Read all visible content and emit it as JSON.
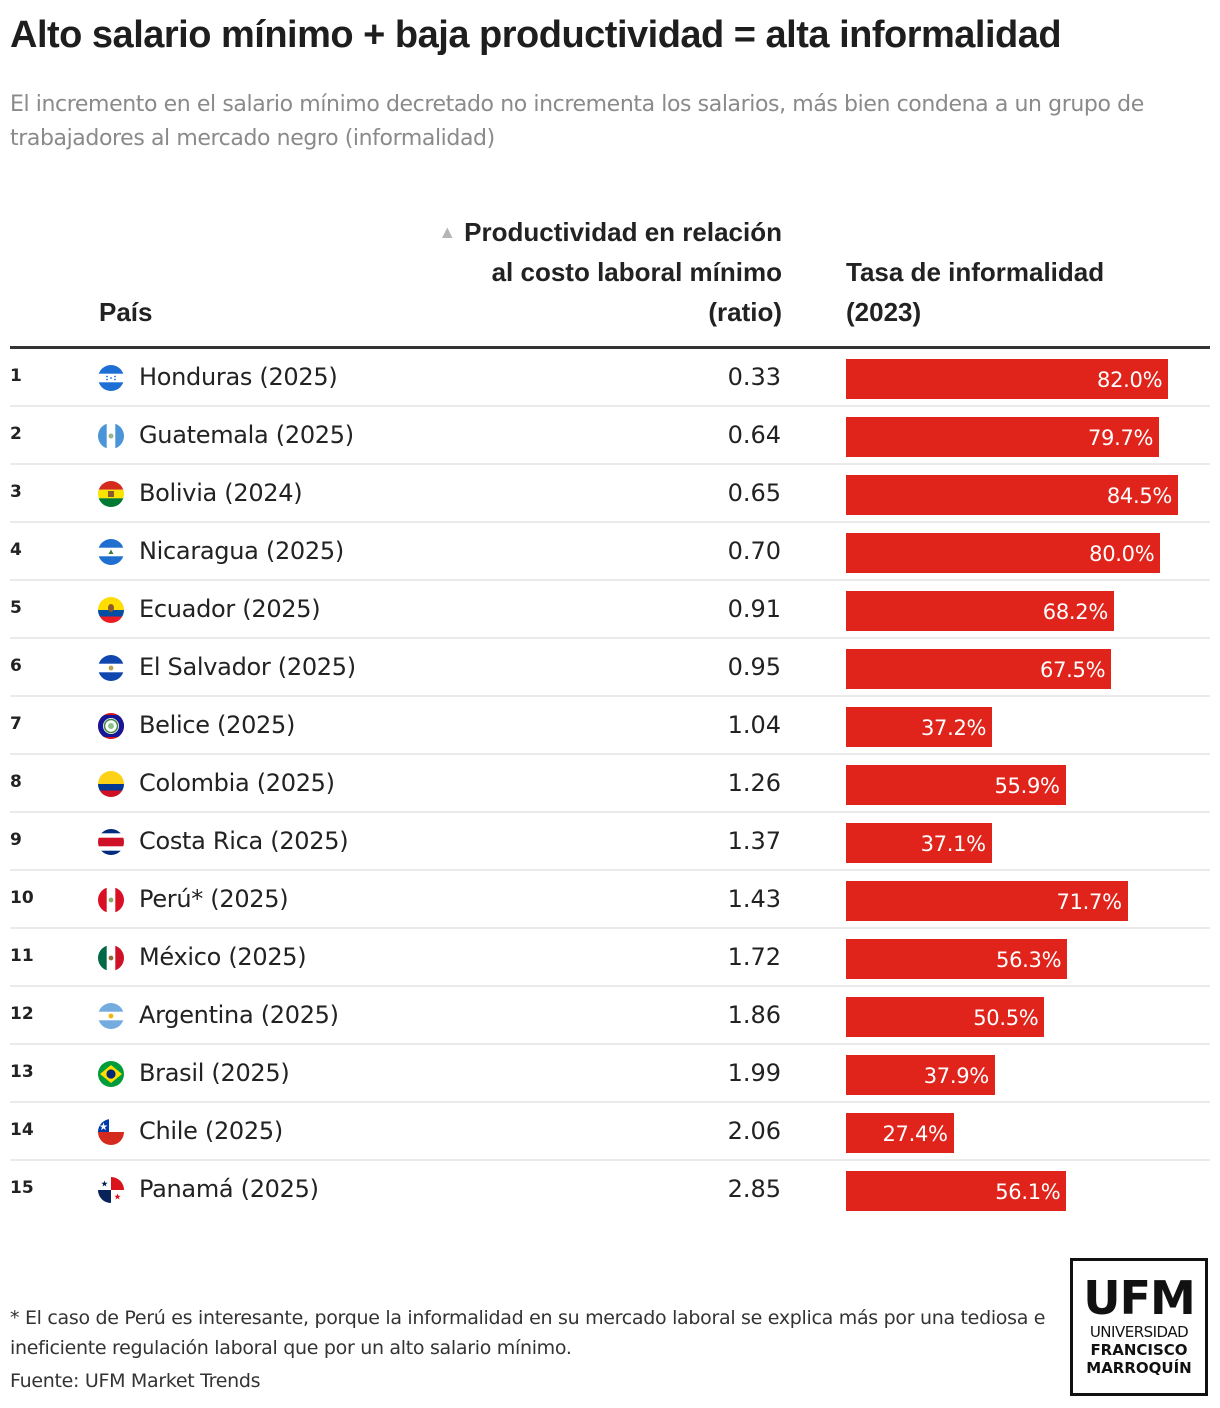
{
  "title": "Alto salario mínimo + baja productividad = alta informalidad",
  "subtitle": "El incremento en el salario mínimo decretado no incrementa los salarios, más bien condena a un grupo de trabajadores al mercado negro (informalidad)",
  "table": {
    "columns": {
      "country": "País",
      "productivity": "Productividad en relación al costo laboral mínimo (ratio)",
      "productivity_sort_icon": "▲",
      "informality": "Tasa de informalidad (2023)"
    },
    "bar_color": "#e0241b"
  },
  "chart_data": {
    "type": "table",
    "title": "Alto salario mínimo + baja productividad = alta informalidad",
    "columns": [
      "País",
      "Productividad en relación al costo laboral mínimo (ratio)",
      "Tasa de informalidad (2023)"
    ],
    "sorted_by": "Productividad en relación al costo laboral mínimo (ratio)",
    "sort_order": "ascending",
    "informality_bar_scale_max": 100,
    "rows": [
      {
        "rank": "1",
        "country": "Honduras (2025)",
        "flag": "honduras-flag-icon",
        "productivity": "0.33",
        "informality": 82.0,
        "informality_label": "82.0%"
      },
      {
        "rank": "2",
        "country": "Guatemala (2025)",
        "flag": "guatemala-flag-icon",
        "productivity": "0.64",
        "informality": 79.7,
        "informality_label": "79.7%"
      },
      {
        "rank": "3",
        "country": "Bolivia (2024)",
        "flag": "bolivia-flag-icon",
        "productivity": "0.65",
        "informality": 84.5,
        "informality_label": "84.5%"
      },
      {
        "rank": "4",
        "country": "Nicaragua (2025)",
        "flag": "nicaragua-flag-icon",
        "productivity": "0.70",
        "informality": 80.0,
        "informality_label": "80.0%"
      },
      {
        "rank": "5",
        "country": "Ecuador (2025)",
        "flag": "ecuador-flag-icon",
        "productivity": "0.91",
        "informality": 68.2,
        "informality_label": "68.2%"
      },
      {
        "rank": "6",
        "country": "El Salvador (2025)",
        "flag": "el-salvador-flag-icon",
        "productivity": "0.95",
        "informality": 67.5,
        "informality_label": "67.5%"
      },
      {
        "rank": "7",
        "country": "Belice (2025)",
        "flag": "belize-flag-icon",
        "productivity": "1.04",
        "informality": 37.2,
        "informality_label": "37.2%"
      },
      {
        "rank": "8",
        "country": "Colombia (2025)",
        "flag": "colombia-flag-icon",
        "productivity": "1.26",
        "informality": 55.9,
        "informality_label": "55.9%"
      },
      {
        "rank": "9",
        "country": "Costa Rica (2025)",
        "flag": "costa-rica-flag-icon",
        "productivity": "1.37",
        "informality": 37.1,
        "informality_label": "37.1%"
      },
      {
        "rank": "10",
        "country": "Perú* (2025)",
        "flag": "peru-flag-icon",
        "productivity": "1.43",
        "informality": 71.7,
        "informality_label": "71.7%"
      },
      {
        "rank": "11",
        "country": "México (2025)",
        "flag": "mexico-flag-icon",
        "productivity": "1.72",
        "informality": 56.3,
        "informality_label": "56.3%"
      },
      {
        "rank": "12",
        "country": "Argentina (2025)",
        "flag": "argentina-flag-icon",
        "productivity": "1.86",
        "informality": 50.5,
        "informality_label": "50.5%"
      },
      {
        "rank": "13",
        "country": "Brasil (2025)",
        "flag": "brazil-flag-icon",
        "productivity": "1.99",
        "informality": 37.9,
        "informality_label": "37.9%"
      },
      {
        "rank": "14",
        "country": "Chile (2025)",
        "flag": "chile-flag-icon",
        "productivity": "2.06",
        "informality": 27.4,
        "informality_label": "27.4%"
      },
      {
        "rank": "15",
        "country": "Panamá (2025)",
        "flag": "panama-flag-icon",
        "productivity": "2.85",
        "informality": 56.1,
        "informality_label": "56.1%"
      }
    ]
  },
  "footnote": "* El caso de Perú es interesante, porque la informalidad en su mercado laboral se explica más por una tediosa e ineficiente regulación laboral que por un alto salario mínimo.",
  "source": "Fuente: UFM Market Trends",
  "logo": {
    "abbr": "UFM",
    "line1": "UNIVERSIDAD",
    "line2": "FRANCISCO",
    "line3": "MARROQUÍN"
  }
}
